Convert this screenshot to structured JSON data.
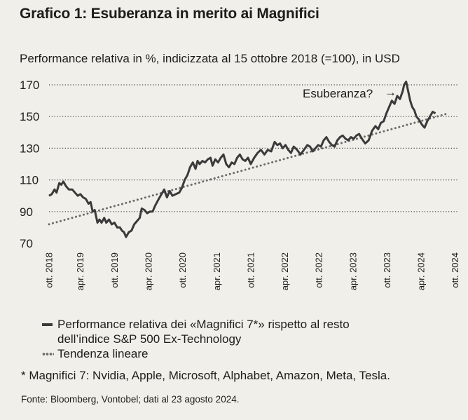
{
  "header": {
    "title": "Grafico 1: Esuberanza in merito ai Magnifici",
    "subtitle": "Performance relativa in %, indicizzata al 15 ottobre 2018 (=100), in USD"
  },
  "chart_data": {
    "type": "line",
    "title": "Grafico 1: Esuberanza in merito ai Magnifici",
    "subtitle": "Performance relativa in %, indicizzata al 15 ottobre 2018 (=100), in USD",
    "ylim": [
      70,
      175
    ],
    "yticks": [
      70,
      90,
      110,
      130,
      150,
      170
    ],
    "grid": "horizontal dotted",
    "xlim": [
      2018.79,
      2024.65
    ],
    "xticks": [
      {
        "label": "ott. 2018",
        "x": 2018.79
      },
      {
        "label": "apr. 2019",
        "x": 2019.25
      },
      {
        "label": "ott. 2019",
        "x": 2019.75
      },
      {
        "label": "apr. 2020",
        "x": 2020.25
      },
      {
        "label": "ott. 2020",
        "x": 2020.75
      },
      {
        "label": "apr. 2021",
        "x": 2021.25
      },
      {
        "label": "ott. 2021",
        "x": 2021.75
      },
      {
        "label": "apr. 2022",
        "x": 2022.25
      },
      {
        "label": "ott. 2022",
        "x": 2022.75
      },
      {
        "label": "apr. 2023",
        "x": 2023.25
      },
      {
        "label": "ott. 2023",
        "x": 2023.75
      },
      {
        "label": "apr. 2024",
        "x": 2024.25
      },
      {
        "label": "ott. 2024",
        "x": 2024.75
      }
    ],
    "series": [
      {
        "name": "Performance relativa dei «Magnifici 7*» rispetto al resto dell’indice S&P 500 Ex-Technology",
        "style": "solid",
        "color": "#3a3a3a",
        "points": [
          [
            2018.79,
            100
          ],
          [
            2018.83,
            101
          ],
          [
            2018.87,
            104
          ],
          [
            2018.9,
            102
          ],
          [
            2018.94,
            108
          ],
          [
            2018.97,
            107
          ],
          [
            2019.0,
            109
          ],
          [
            2019.04,
            106
          ],
          [
            2019.08,
            104
          ],
          [
            2019.13,
            104
          ],
          [
            2019.17,
            102
          ],
          [
            2019.21,
            100
          ],
          [
            2019.25,
            101
          ],
          [
            2019.29,
            99
          ],
          [
            2019.33,
            98
          ],
          [
            2019.37,
            95
          ],
          [
            2019.4,
            96
          ],
          [
            2019.43,
            90
          ],
          [
            2019.46,
            91
          ],
          [
            2019.5,
            83
          ],
          [
            2019.53,
            85
          ],
          [
            2019.56,
            83
          ],
          [
            2019.6,
            86
          ],
          [
            2019.63,
            83
          ],
          [
            2019.67,
            85
          ],
          [
            2019.71,
            82
          ],
          [
            2019.75,
            83
          ],
          [
            2019.79,
            80
          ],
          [
            2019.83,
            80
          ],
          [
            2019.86,
            78
          ],
          [
            2019.89,
            77
          ],
          [
            2019.92,
            74
          ],
          [
            2019.96,
            77
          ],
          [
            2020.0,
            78
          ],
          [
            2020.04,
            82
          ],
          [
            2020.08,
            84
          ],
          [
            2020.12,
            86
          ],
          [
            2020.15,
            92
          ],
          [
            2020.19,
            91
          ],
          [
            2020.23,
            89
          ],
          [
            2020.27,
            90
          ],
          [
            2020.31,
            90
          ],
          [
            2020.35,
            94
          ],
          [
            2020.4,
            98
          ],
          [
            2020.44,
            101
          ],
          [
            2020.48,
            104
          ],
          [
            2020.52,
            99
          ],
          [
            2020.56,
            103
          ],
          [
            2020.6,
            100
          ],
          [
            2020.65,
            101
          ],
          [
            2020.7,
            102
          ],
          [
            2020.74,
            105
          ],
          [
            2020.78,
            110
          ],
          [
            2020.82,
            113
          ],
          [
            2020.86,
            118
          ],
          [
            2020.9,
            121
          ],
          [
            2020.94,
            117
          ],
          [
            2020.97,
            122
          ],
          [
            2021.0,
            120
          ],
          [
            2021.04,
            122
          ],
          [
            2021.08,
            121
          ],
          [
            2021.12,
            123
          ],
          [
            2021.16,
            124
          ],
          [
            2021.19,
            119
          ],
          [
            2021.23,
            123
          ],
          [
            2021.27,
            121
          ],
          [
            2021.31,
            124
          ],
          [
            2021.35,
            126
          ],
          [
            2021.39,
            120
          ],
          [
            2021.43,
            118
          ],
          [
            2021.47,
            121
          ],
          [
            2021.51,
            120
          ],
          [
            2021.55,
            124
          ],
          [
            2021.59,
            126
          ],
          [
            2021.63,
            123
          ],
          [
            2021.67,
            122
          ],
          [
            2021.71,
            124
          ],
          [
            2021.75,
            120
          ],
          [
            2021.8,
            124
          ],
          [
            2021.85,
            127
          ],
          [
            2021.9,
            129
          ],
          [
            2021.95,
            126
          ],
          [
            2022.0,
            129
          ],
          [
            2022.05,
            128
          ],
          [
            2022.1,
            134
          ],
          [
            2022.14,
            132
          ],
          [
            2022.18,
            133
          ],
          [
            2022.22,
            130
          ],
          [
            2022.26,
            132
          ],
          [
            2022.3,
            129
          ],
          [
            2022.34,
            127
          ],
          [
            2022.38,
            131
          ],
          [
            2022.43,
            129
          ],
          [
            2022.48,
            126
          ],
          [
            2022.53,
            129
          ],
          [
            2022.58,
            132
          ],
          [
            2022.62,
            131
          ],
          [
            2022.66,
            128
          ],
          [
            2022.7,
            130
          ],
          [
            2022.74,
            132
          ],
          [
            2022.78,
            131
          ],
          [
            2022.82,
            135
          ],
          [
            2022.86,
            137
          ],
          [
            2022.9,
            134
          ],
          [
            2022.94,
            132
          ],
          [
            2022.98,
            131
          ],
          [
            2023.02,
            135
          ],
          [
            2023.06,
            137
          ],
          [
            2023.1,
            138
          ],
          [
            2023.14,
            136
          ],
          [
            2023.18,
            135
          ],
          [
            2023.22,
            137
          ],
          [
            2023.26,
            136
          ],
          [
            2023.3,
            138
          ],
          [
            2023.34,
            139
          ],
          [
            2023.38,
            136
          ],
          [
            2023.43,
            133
          ],
          [
            2023.48,
            135
          ],
          [
            2023.53,
            141
          ],
          [
            2023.58,
            144
          ],
          [
            2023.62,
            142
          ],
          [
            2023.66,
            146
          ],
          [
            2023.7,
            147
          ],
          [
            2023.74,
            152
          ],
          [
            2023.78,
            156
          ],
          [
            2023.82,
            160
          ],
          [
            2023.86,
            158
          ],
          [
            2023.9,
            163
          ],
          [
            2023.94,
            161
          ],
          [
            2023.98,
            166
          ],
          [
            2024.0,
            170
          ],
          [
            2024.03,
            172
          ],
          [
            2024.06,
            166
          ],
          [
            2024.09,
            160
          ],
          [
            2024.12,
            156
          ],
          [
            2024.15,
            154
          ],
          [
            2024.18,
            150
          ],
          [
            2024.22,
            148
          ],
          [
            2024.26,
            145
          ],
          [
            2024.3,
            143
          ],
          [
            2024.34,
            147
          ],
          [
            2024.38,
            150
          ],
          [
            2024.42,
            153
          ],
          [
            2024.46,
            152
          ]
        ]
      },
      {
        "name": "Tendenza lineare",
        "style": "dotted",
        "color": "#6b6b6b",
        "points": [
          [
            2018.79,
            82
          ],
          [
            2024.65,
            152
          ]
        ]
      }
    ],
    "annotations": [
      {
        "text": "Esuberanza?",
        "arrow": "→"
      }
    ]
  },
  "legend": {
    "items": [
      {
        "label_line1": "Performance relativa dei «Magnifici 7*» rispetto al resto",
        "label_line2": "dell’indice S&P 500 Ex-Technology",
        "style": "solid"
      },
      {
        "label_line1": "Tendenza lineare",
        "style": "dotted"
      }
    ]
  },
  "footnote": "* Magnifici 7: Nvidia, Apple, Microsoft, Alphabet, Amazon, Meta, Tesla.",
  "source": "Fonte: Bloomberg, Vontobel; dati al 23 agosto 2024."
}
